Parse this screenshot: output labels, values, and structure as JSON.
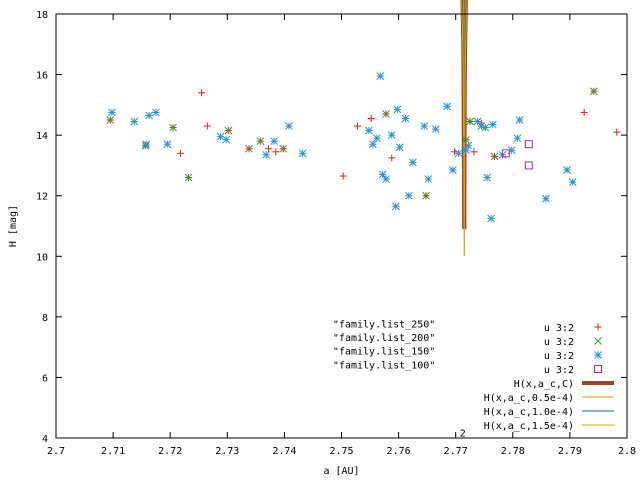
{
  "chart_data": {
    "type": "scatter",
    "title": "",
    "xlabel": "a [AU]",
    "ylabel": "H [mag]",
    "xlim": [
      2.7,
      2.8
    ],
    "ylim": [
      4,
      18
    ],
    "xticks": [
      "2.7",
      "2.71",
      "2.72",
      "2.73",
      "2.74",
      "2.75",
      "2.76",
      "2.77",
      "2.78",
      "2.79",
      "2.8"
    ],
    "yticks": [
      "4",
      "6",
      "8",
      "10",
      "12",
      "14",
      "16",
      "18"
    ],
    "grid": false,
    "legend_position": "bottom-right",
    "text_annotations": [
      {
        "text": "\"family.list_250\"",
        "x": 2.7485,
        "y": 7.65
      },
      {
        "text": "\"family.list_200\"",
        "x": 2.7485,
        "y": 7.2
      },
      {
        "text": "\"family.list_150\"",
        "x": 2.7485,
        "y": 6.75
      },
      {
        "text": "\"family.list_100\"",
        "x": 2.7485,
        "y": 6.3
      },
      {
        "text": "2",
        "x": 2.7707,
        "y": 4.05
      }
    ],
    "series": [
      {
        "name": "u 3:2",
        "marker": "plus",
        "color": "#e6201c",
        "points": [
          [
            2.7095,
            14.5
          ],
          [
            2.7157,
            13.65
          ],
          [
            2.7205,
            14.25
          ],
          [
            2.7218,
            13.4
          ],
          [
            2.7232,
            12.6
          ],
          [
            2.7255,
            15.4
          ],
          [
            2.7265,
            14.3
          ],
          [
            2.7302,
            14.15
          ],
          [
            2.7338,
            13.55
          ],
          [
            2.7358,
            13.8
          ],
          [
            2.7372,
            13.55
          ],
          [
            2.7385,
            13.45
          ],
          [
            2.7398,
            13.55
          ],
          [
            2.7503,
            12.65
          ],
          [
            2.7528,
            14.3
          ],
          [
            2.7552,
            14.55
          ],
          [
            2.7578,
            14.7
          ],
          [
            2.7588,
            13.25
          ],
          [
            2.7648,
            12.0
          ],
          [
            2.7698,
            13.45
          ],
          [
            2.7718,
            13.85
          ],
          [
            2.7725,
            14.45
          ],
          [
            2.7732,
            13.45
          ],
          [
            2.7745,
            14.4
          ],
          [
            2.7768,
            13.3
          ],
          [
            2.7925,
            14.75
          ],
          [
            2.7942,
            15.45
          ],
          [
            2.7982,
            14.1
          ]
        ]
      },
      {
        "name": "u 3:2",
        "marker": "cross",
        "color": "#2ca02c",
        "points": [
          [
            2.7095,
            14.5
          ],
          [
            2.7157,
            13.65
          ],
          [
            2.7205,
            14.25
          ],
          [
            2.7232,
            12.6
          ],
          [
            2.7302,
            14.15
          ],
          [
            2.7338,
            13.55
          ],
          [
            2.7358,
            13.8
          ],
          [
            2.7398,
            13.55
          ],
          [
            2.7578,
            14.7
          ],
          [
            2.7648,
            12.0
          ],
          [
            2.7718,
            13.85
          ],
          [
            2.7725,
            14.45
          ],
          [
            2.7768,
            13.3
          ],
          [
            2.7942,
            15.45
          ]
        ]
      },
      {
        "name": "u 3:2",
        "marker": "star",
        "color": "#2a8fd6",
        "points": [
          [
            2.7098,
            14.75
          ],
          [
            2.7137,
            14.45
          ],
          [
            2.7158,
            13.7
          ],
          [
            2.7163,
            14.65
          ],
          [
            2.7175,
            14.75
          ],
          [
            2.7195,
            13.7
          ],
          [
            2.7288,
            13.95
          ],
          [
            2.7298,
            13.85
          ],
          [
            2.7368,
            13.35
          ],
          [
            2.7382,
            13.8
          ],
          [
            2.7408,
            14.3
          ],
          [
            2.7432,
            13.4
          ],
          [
            2.7548,
            14.15
          ],
          [
            2.7555,
            13.7
          ],
          [
            2.7562,
            13.9
          ],
          [
            2.7568,
            15.95
          ],
          [
            2.7572,
            12.7
          ],
          [
            2.7578,
            12.55
          ],
          [
            2.7588,
            14.0
          ],
          [
            2.7595,
            11.65
          ],
          [
            2.7598,
            14.85
          ],
          [
            2.7602,
            13.6
          ],
          [
            2.7612,
            14.55
          ],
          [
            2.7618,
            12.0
          ],
          [
            2.7625,
            13.1
          ],
          [
            2.7645,
            14.3
          ],
          [
            2.7652,
            12.55
          ],
          [
            2.7665,
            14.2
          ],
          [
            2.7685,
            14.95
          ],
          [
            2.7695,
            12.85
          ],
          [
            2.7705,
            13.4
          ],
          [
            2.7718,
            13.5
          ],
          [
            2.7722,
            13.65
          ],
          [
            2.7738,
            14.45
          ],
          [
            2.7745,
            14.3
          ],
          [
            2.7752,
            14.25
          ],
          [
            2.7755,
            12.6
          ],
          [
            2.7762,
            11.25
          ],
          [
            2.7765,
            14.35
          ],
          [
            2.7782,
            13.35
          ],
          [
            2.7798,
            13.5
          ],
          [
            2.7808,
            13.9
          ],
          [
            2.7812,
            14.5
          ],
          [
            2.7858,
            11.9
          ],
          [
            2.7895,
            12.85
          ],
          [
            2.7905,
            12.45
          ]
        ]
      },
      {
        "name": "u 3:2",
        "marker": "box",
        "color": "#9b2fae",
        "points": [
          [
            2.7788,
            13.4
          ],
          [
            2.7828,
            13.7
          ],
          [
            2.7828,
            13.0
          ]
        ]
      },
      {
        "name": "H(x,a_c,C)",
        "kind": "curve",
        "C": 0.0001,
        "color": "#a0442c",
        "width": 4
      },
      {
        "name": "H(x,a_c,0.5e-4)",
        "kind": "curve",
        "C": 5e-05,
        "color": "#c8a800",
        "width": 1
      },
      {
        "name": "H(x,a_c,1.0e-4)",
        "kind": "curve",
        "C": 0.0001,
        "color": "#1c6e8c",
        "width": 1
      },
      {
        "name": "H(x,a_c,1.5e-4)",
        "kind": "curve",
        "C": 0.00015,
        "color": "#e8a000",
        "width": 1
      }
    ],
    "curve_model": {
      "a_c": 2.7715,
      "h_constant": 15.9,
      "x_range": [
        2.7095,
        2.798
      ]
    }
  }
}
